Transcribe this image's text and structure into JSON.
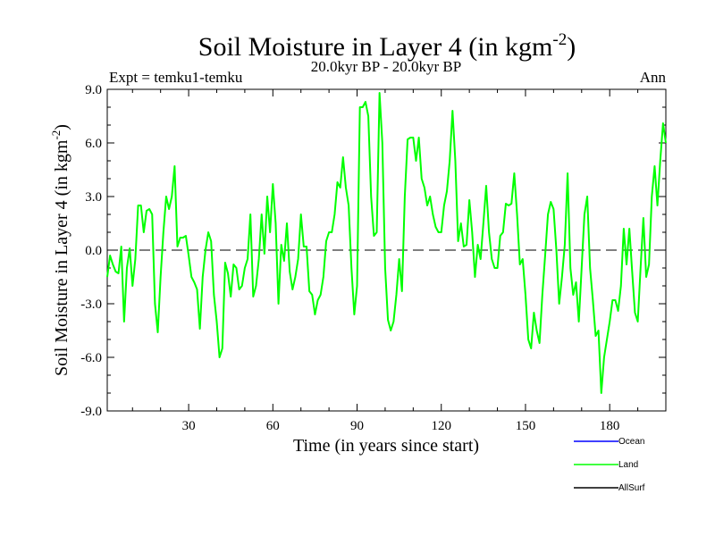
{
  "chart_data": {
    "type": "line",
    "title": "Soil Moisture in Layer 4 (in kgm",
    "title_sup": "-2",
    "title_close": ")",
    "subtitle": "20.0kyr BP - 20.0kyr BP",
    "left_label": "Expt = temku1-temku",
    "right_label": "Ann",
    "xlabel": "Time (in years since start)",
    "ylabel": "Soil Moisture in Layer 4 (in kgm",
    "ylabel_sup": "-2",
    "ylabel_close": ")",
    "xlim": [
      1,
      200
    ],
    "ylim": [
      -9,
      9
    ],
    "xticks": [
      30,
      60,
      90,
      120,
      150,
      180
    ],
    "xtick_labels": [
      "30",
      "60",
      "90",
      "120",
      "150",
      "180"
    ],
    "yticks": [
      -9,
      -6,
      -3,
      0,
      3,
      6,
      9
    ],
    "ytick_labels": [
      "-9.0",
      "-6.0",
      "-3.0",
      "0.0",
      "3.0",
      "6.0",
      "9.0"
    ],
    "zero_line": "dashed",
    "legend_position": "bottom-right",
    "series": [
      {
        "name": "Ocean",
        "color": "#0000ff",
        "values": []
      },
      {
        "name": "Land",
        "color": "#00ff00",
        "x": [
          1,
          2,
          3,
          4,
          5,
          6,
          7,
          8,
          9,
          10,
          11,
          12,
          13,
          14,
          15,
          16,
          17,
          18,
          19,
          20,
          21,
          22,
          23,
          24,
          25,
          26,
          27,
          28,
          29,
          30,
          31,
          32,
          33,
          34,
          35,
          36,
          37,
          38,
          39,
          40,
          41,
          42,
          43,
          44,
          45,
          46,
          47,
          48,
          49,
          50,
          51,
          52,
          53,
          54,
          55,
          56,
          57,
          58,
          59,
          60,
          61,
          62,
          63,
          64,
          65,
          66,
          67,
          68,
          69,
          70,
          71,
          72,
          73,
          74,
          75,
          76,
          77,
          78,
          79,
          80,
          81,
          82,
          83,
          84,
          85,
          86,
          87,
          88,
          89,
          90,
          91,
          92,
          93,
          94,
          95,
          96,
          97,
          98,
          99,
          100,
          101,
          102,
          103,
          104,
          105,
          106,
          107,
          108,
          109,
          110,
          111,
          112,
          113,
          114,
          115,
          116,
          117,
          118,
          119,
          120,
          121,
          122,
          123,
          124,
          125,
          126,
          127,
          128,
          129,
          130,
          131,
          132,
          133,
          134,
          135,
          136,
          137,
          138,
          139,
          140,
          141,
          142,
          143,
          144,
          145,
          146,
          147,
          148,
          149,
          150,
          151,
          152,
          153,
          154,
          155,
          156,
          157,
          158,
          159,
          160,
          161,
          162,
          163,
          164,
          165,
          166,
          167,
          168,
          169,
          170,
          171,
          172,
          173,
          174,
          175,
          176,
          177,
          178,
          179,
          180,
          181,
          182,
          183,
          184,
          185,
          186,
          187,
          188,
          189,
          190,
          191,
          192,
          193,
          194,
          195,
          196,
          197,
          198,
          199,
          200
        ],
        "values": [
          -1.5,
          -0.3,
          -0.8,
          -1.2,
          -1.3,
          0.2,
          -4.0,
          -1.0,
          0.1,
          -2.0,
          -0.5,
          2.5,
          2.5,
          1.0,
          2.2,
          2.3,
          2.0,
          -3.0,
          -4.6,
          -1.5,
          1.0,
          3.0,
          2.3,
          3.0,
          4.7,
          0.2,
          0.7,
          0.7,
          0.8,
          -0.3,
          -1.5,
          -1.8,
          -2.2,
          -4.4,
          -1.5,
          0.0,
          1.0,
          0.5,
          -2.5,
          -4.0,
          -6.0,
          -5.5,
          -0.7,
          -1.3,
          -2.6,
          -0.8,
          -1.0,
          -2.2,
          -2.0,
          -1.0,
          -0.5,
          2.0,
          -2.6,
          -2.0,
          -0.5,
          2.0,
          -0.2,
          3.0,
          1.0,
          3.7,
          1.5,
          -3.0,
          0.3,
          -0.6,
          1.5,
          -1.2,
          -2.2,
          -1.5,
          -0.5,
          2.0,
          0.2,
          0.2,
          -2.3,
          -2.5,
          -3.6,
          -2.8,
          -2.5,
          -1.5,
          0.5,
          1.0,
          1.0,
          2.0,
          3.8,
          3.5,
          5.2,
          3.5,
          2.5,
          -1.0,
          -3.6,
          -2.0,
          8.0,
          8.0,
          8.3,
          7.5,
          3.0,
          0.8,
          1.0,
          8.8,
          6.0,
          -1.0,
          -3.9,
          -4.5,
          -4.0,
          -2.5,
          -0.5,
          -2.3,
          3.0,
          6.2,
          6.3,
          6.3,
          5.0,
          6.3,
          4.0,
          3.5,
          2.5,
          3.0,
          2.0,
          1.3,
          1.0,
          1.0,
          2.5,
          3.3,
          5.0,
          7.8,
          5.0,
          0.5,
          1.5,
          0.2,
          0.3,
          2.8,
          1.0,
          -1.5,
          0.3,
          -0.5,
          1.5,
          3.6,
          1.0,
          -0.5,
          -1.0,
          -1.0,
          0.8,
          1.0,
          2.6,
          2.5,
          2.6,
          4.3,
          2.0,
          -0.8,
          -0.5,
          -2.5,
          -5.0,
          -5.5,
          -3.5,
          -4.5,
          -5.2,
          -2.5,
          -0.3,
          2.0,
          2.7,
          2.3,
          0.0,
          -3.0,
          -1.5,
          0.3,
          4.3,
          -1.0,
          -2.5,
          -1.8,
          -4.0,
          -1.0,
          2.0,
          3.0,
          -1.0,
          -2.8,
          -4.8,
          -4.5,
          -8.0,
          -6.0,
          -5.0,
          -4.0,
          -2.8,
          -2.8,
          -3.4,
          -2.0,
          1.2,
          -0.8,
          1.2,
          -1.2,
          -3.5,
          -4.0,
          -1.0,
          1.8,
          -1.5,
          -0.8,
          3.0,
          4.7,
          2.5,
          5.0,
          7.1,
          6.0
        ]
      },
      {
        "name": "AllSurf",
        "color": "#000000",
        "values": []
      }
    ]
  }
}
